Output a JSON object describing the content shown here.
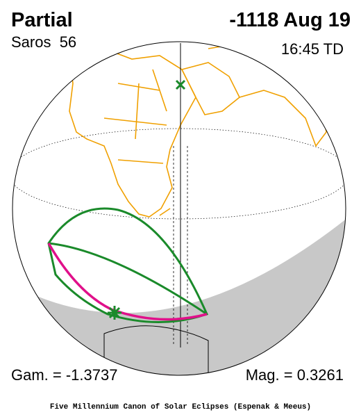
{
  "header": {
    "type": "Partial",
    "date": "-1118 Aug 19",
    "saros": "Saros  56",
    "time": "16:45 TD"
  },
  "footer": {
    "gamma": "Gam. = -1.3737",
    "magnitude": "Mag. = 0.3261",
    "credit": "Five Millennium Canon of Solar Eclipses (Espenak & Meeus)"
  }
}
